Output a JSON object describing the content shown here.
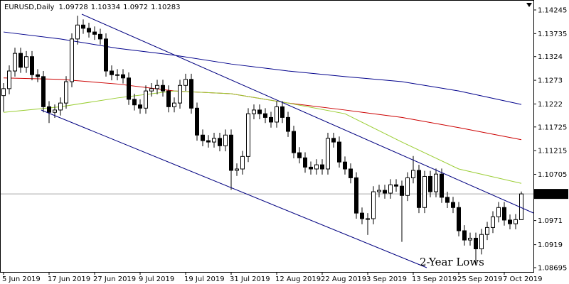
{
  "chart_data": {
    "type": "candlestick",
    "symbol": "EURUSD,Daily",
    "categories": [
      "5 Jun 2019",
      null,
      null,
      null,
      null,
      null,
      null,
      null,
      "17 Jun 2019",
      null,
      null,
      null,
      null,
      null,
      null,
      null,
      "27 Jun 2019",
      null,
      null,
      null,
      null,
      null,
      null,
      null,
      "9 Jul 2019",
      null,
      null,
      null,
      null,
      null,
      null,
      null,
      "19 Jul 2019",
      null,
      null,
      null,
      null,
      null,
      null,
      null,
      "31 Jul 2019",
      null,
      null,
      null,
      null,
      null,
      null,
      null,
      "12 Aug 2019",
      null,
      null,
      null,
      null,
      null,
      null,
      null,
      "22 Aug 2019",
      null,
      null,
      null,
      null,
      null,
      null,
      null,
      "3 Sep 2019",
      null,
      null,
      null,
      null,
      null,
      null,
      null,
      "13 Sep 2019",
      null,
      null,
      null,
      null,
      null,
      null,
      null,
      "25 Sep 2019",
      null,
      null,
      null,
      null,
      null,
      null,
      null,
      "7 Oct 2019",
      null,
      null,
      null
    ],
    "open": [
      1.124,
      1.1255,
      1.1293,
      1.1331,
      1.1301,
      1.1324,
      1.1285,
      1.1281,
      1.1216,
      1.1204,
      1.1209,
      1.1224,
      1.127,
      1.1362,
      1.1392,
      1.1385,
      1.1377,
      1.1372,
      1.1362,
      1.1293,
      1.1285,
      1.1285,
      1.1278,
      1.1232,
      1.122,
      1.1213,
      1.125,
      1.1255,
      1.1262,
      1.125,
      1.1216,
      1.1224,
      1.1262,
      1.1275,
      1.1213,
      1.1155,
      1.1143,
      1.114,
      1.1148,
      1.1132,
      1.1155,
      1.1079,
      1.1082,
      1.1109,
      1.1201,
      1.1209,
      1.1201,
      1.1193,
      1.1183,
      1.1216,
      1.1193,
      1.1163,
      1.1117,
      1.1106,
      1.1086,
      1.1082,
      1.1091,
      1.1082,
      1.1148,
      1.114,
      1.1097,
      1.1082,
      1.1063,
      1.0987,
      1.0975,
      1.0975,
      1.1033,
      1.1036,
      1.103,
      1.1048,
      1.1045,
      1.1025,
      1.1063,
      1.1079,
      1.0999,
      1.1066,
      1.1033,
      1.1071,
      1.1021,
      1.101,
      1.0999,
      1.0949,
      1.0929,
      1.0933,
      1.091,
      1.0941,
      1.0956,
      1.0979,
      1.0999,
      1.0972,
      1.0964,
      1.09728
    ],
    "high": [
      1.1267,
      1.1305,
      1.1343,
      1.1343,
      1.1336,
      1.1336,
      1.1297,
      1.1293,
      1.1228,
      1.1221,
      1.1236,
      1.1282,
      1.1374,
      1.1412,
      1.1404,
      1.1397,
      1.1389,
      1.1384,
      1.1374,
      1.1305,
      1.1297,
      1.1297,
      1.129,
      1.1244,
      1.1232,
      1.1262,
      1.1267,
      1.1274,
      1.1274,
      1.1262,
      1.1236,
      1.1274,
      1.1287,
      1.1287,
      1.1225,
      1.1167,
      1.1155,
      1.116,
      1.116,
      1.1167,
      1.1167,
      1.1094,
      1.1121,
      1.1213,
      1.1221,
      1.1221,
      1.1213,
      1.1205,
      1.1228,
      1.1228,
      1.1205,
      1.1175,
      1.1129,
      1.1118,
      1.1098,
      1.1103,
      1.1103,
      1.116,
      1.116,
      1.1152,
      1.1109,
      1.1094,
      1.1075,
      1.0999,
      1.0987,
      1.1045,
      1.1048,
      1.1048,
      1.106,
      1.106,
      1.1057,
      1.1075,
      1.111,
      1.1091,
      1.1078,
      1.1078,
      1.1083,
      1.1083,
      1.1033,
      1.1022,
      1.1011,
      1.0961,
      1.0945,
      1.0945,
      1.0953,
      1.0968,
      1.0991,
      1.1011,
      1.1011,
      1.0984,
      1.0985,
      1.10334
    ],
    "low": [
      1.1205,
      1.1243,
      1.1281,
      1.1289,
      1.1289,
      1.1273,
      1.1269,
      1.1204,
      1.1181,
      1.1192,
      1.1197,
      1.1212,
      1.1258,
      1.135,
      1.1373,
      1.1365,
      1.136,
      1.135,
      1.1281,
      1.1273,
      1.1273,
      1.1266,
      1.122,
      1.1208,
      1.1201,
      1.1201,
      1.1238,
      1.1243,
      1.1238,
      1.1204,
      1.1204,
      1.1212,
      1.125,
      1.1201,
      1.1143,
      1.1131,
      1.1128,
      1.1128,
      1.112,
      1.112,
      1.1037,
      1.1067,
      1.107,
      1.1097,
      1.1189,
      1.1189,
      1.1181,
      1.1171,
      1.1171,
      1.1181,
      1.1151,
      1.1105,
      1.1094,
      1.1074,
      1.107,
      1.107,
      1.107,
      1.107,
      1.1128,
      1.1085,
      1.107,
      1.1051,
      1.0975,
      1.0963,
      1.094,
      1.0963,
      1.1021,
      1.1018,
      1.1018,
      1.1033,
      1.0925,
      1.1013,
      1.1051,
      1.0987,
      1.0987,
      1.1021,
      1.1021,
      1.1009,
      1.0998,
      1.0987,
      1.0937,
      1.0917,
      1.0917,
      1.0879,
      1.0898,
      1.0929,
      1.0944,
      1.0967,
      1.096,
      1.0952,
      1.0952,
      1.0972
    ],
    "close": [
      1.1255,
      1.1293,
      1.1331,
      1.1301,
      1.1324,
      1.1285,
      1.1281,
      1.1216,
      1.1204,
      1.1209,
      1.1224,
      1.127,
      1.1362,
      1.1392,
      1.1385,
      1.1377,
      1.1372,
      1.1362,
      1.1293,
      1.1285,
      1.1285,
      1.1278,
      1.1232,
      1.122,
      1.1213,
      1.125,
      1.1255,
      1.1262,
      1.125,
      1.1216,
      1.1224,
      1.1262,
      1.1275,
      1.1213,
      1.1155,
      1.1143,
      1.114,
      1.1148,
      1.1132,
      1.1155,
      1.1079,
      1.1082,
      1.1109,
      1.1201,
      1.1209,
      1.1201,
      1.1193,
      1.1183,
      1.1216,
      1.1193,
      1.1163,
      1.1117,
      1.1106,
      1.1086,
      1.1082,
      1.1091,
      1.1082,
      1.1148,
      1.114,
      1.1097,
      1.1082,
      1.1063,
      1.0987,
      1.0975,
      1.0975,
      1.1033,
      1.1036,
      1.103,
      1.1048,
      1.1045,
      1.1025,
      1.1063,
      1.1079,
      1.0999,
      1.1066,
      1.1033,
      1.1071,
      1.1021,
      1.101,
      1.0999,
      1.0949,
      1.0929,
      1.0933,
      1.091,
      1.0941,
      1.0956,
      1.0979,
      1.0999,
      1.0972,
      1.0964,
      1.0973,
      1.10283
    ],
    "up_color": "#ffffff",
    "down_color": "#000000",
    "ylim": [
      1.08603,
      1.14459
    ],
    "yticks": [
      1.14245,
      1.13735,
      1.1324,
      1.1273,
      1.1222,
      1.11725,
      1.11215,
      1.10705,
      1.0971,
      1.0919,
      1.08695
    ],
    "moving_averages": [
      {
        "color": "#00008b",
        "x": [
          0,
          10,
          20,
          30,
          40,
          50,
          60,
          70,
          80,
          91
        ],
        "values": [
          1.1377,
          1.1362,
          1.1342,
          1.1327,
          1.1308,
          1.1293,
          1.1281,
          1.127,
          1.125,
          1.1221
        ]
      },
      {
        "color": "#cc0000",
        "x": [
          0,
          10,
          20,
          30,
          40,
          50,
          60,
          70,
          80,
          91
        ],
        "values": [
          1.1278,
          1.1275,
          1.1265,
          1.125,
          1.1244,
          1.1224,
          1.1209,
          1.1193,
          1.1171,
          1.1145
        ]
      },
      {
        "color": "#9acd32",
        "x": [
          0,
          10,
          20,
          30,
          40,
          50,
          60,
          70,
          80,
          91
        ],
        "values": [
          1.1204,
          1.1216,
          1.1235,
          1.125,
          1.1244,
          1.1224,
          1.1201,
          1.114,
          1.1082,
          1.1051
        ]
      }
    ],
    "annotation": "2-Year Lows",
    "annotation_color": "#ff0000"
  }
}
